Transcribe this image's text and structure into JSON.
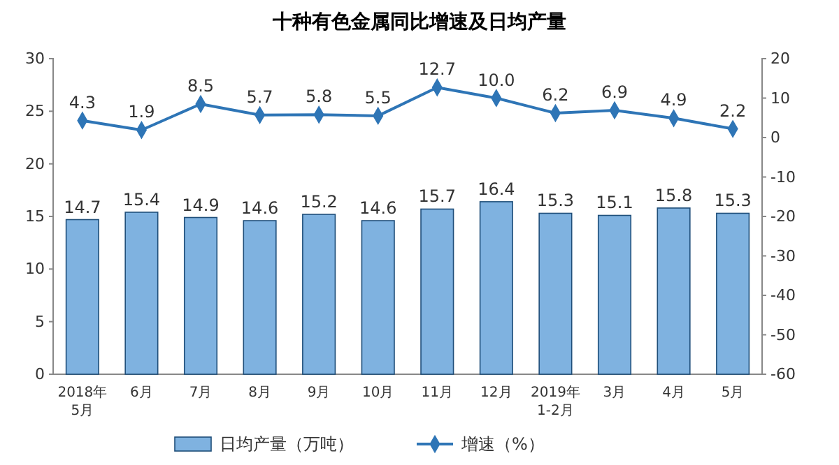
{
  "chart_data": {
    "type": "bar",
    "title": "十种有色金属同比增速及日均产量",
    "categories": [
      "2018年\n5月",
      "6月",
      "7月",
      "8月",
      "9月",
      "10月",
      "11月",
      "12月",
      "2019年\n1-2月",
      "3月",
      "4月",
      "5月"
    ],
    "series": [
      {
        "name": "日均产量（万吨）",
        "color": "#7fb2e0",
        "values": [
          14.7,
          15.4,
          14.9,
          14.6,
          15.2,
          14.6,
          15.7,
          16.4,
          15.3,
          15.1,
          15.8,
          15.3
        ],
        "value_labels": [
          "14.7",
          "15.4",
          "14.9",
          "14.6",
          "15.2",
          "14.6",
          "15.7",
          "16.4",
          "15.3",
          "15.1",
          "15.8",
          "15.3"
        ]
      },
      {
        "name": "增速（%）",
        "type": "line",
        "axis": "y2",
        "color": "#2e75b6",
        "marker": "diamond",
        "values": [
          4.3,
          1.9,
          8.5,
          5.7,
          5.8,
          5.5,
          12.7,
          10.0,
          6.2,
          6.9,
          4.9,
          2.2
        ],
        "value_labels": [
          "4.3",
          "1.9",
          "8.5",
          "5.7",
          "5.8",
          "5.5",
          "12.7",
          "10.0",
          "6.2",
          "6.9",
          "4.9",
          "2.2"
        ]
      }
    ],
    "ylim": [
      0,
      30
    ],
    "yticks": [
      0,
      5,
      10,
      15,
      20,
      25,
      30
    ],
    "y2lim": [
      -60,
      20
    ],
    "y2ticks": [
      -60,
      -50,
      -40,
      -30,
      -20,
      -10,
      0,
      10,
      20
    ],
    "legend": "bottom",
    "grid": false
  }
}
